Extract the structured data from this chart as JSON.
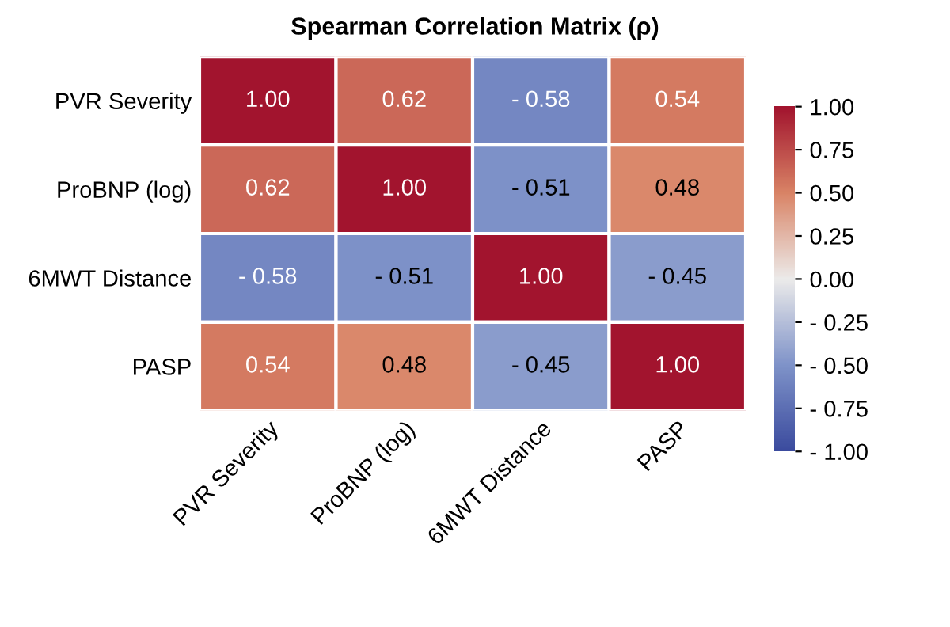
{
  "chart_data": {
    "type": "heatmap",
    "title": "Spearman Correlation Matrix (ρ)",
    "categories": [
      "PVR Severity",
      "ProBNP (log)",
      "6MWT Distance",
      "PASP"
    ],
    "y_categories": [
      "PVR Severity",
      "ProBNP (log)",
      "6MWT Distance",
      "PASP"
    ],
    "cells": [
      [
        1.0,
        0.62,
        -0.58,
        0.54
      ],
      [
        0.62,
        1.0,
        -0.51,
        0.48
      ],
      [
        -0.58,
        -0.51,
        1.0,
        -0.45
      ],
      [
        0.54,
        0.48,
        -0.45,
        1.0
      ]
    ],
    "cell_labels": [
      [
        "1.00",
        "0.62",
        "- 0.58",
        "0.54"
      ],
      [
        "0.62",
        "1.00",
        "- 0.51",
        "0.48"
      ],
      [
        "- 0.58",
        "- 0.51",
        "1.00",
        "- 0.45"
      ],
      [
        "0.54",
        "0.48",
        "- 0.45",
        "1.00"
      ]
    ],
    "clim": [
      -1,
      1
    ],
    "cticks": [
      {
        "value": 1,
        "label": "1.00"
      },
      {
        "value": 0.75,
        "label": "0.75"
      },
      {
        "value": 0.5,
        "label": "0.50"
      },
      {
        "value": 0.25,
        "label": "0.25"
      },
      {
        "value": 0,
        "label": "0.00"
      },
      {
        "value": -0.25,
        "label": "- 0.25"
      },
      {
        "value": -0.5,
        "label": "- 0.50"
      },
      {
        "value": -0.75,
        "label": "- 0.75"
      },
      {
        "value": -1,
        "label": "- 1.00"
      }
    ]
  }
}
